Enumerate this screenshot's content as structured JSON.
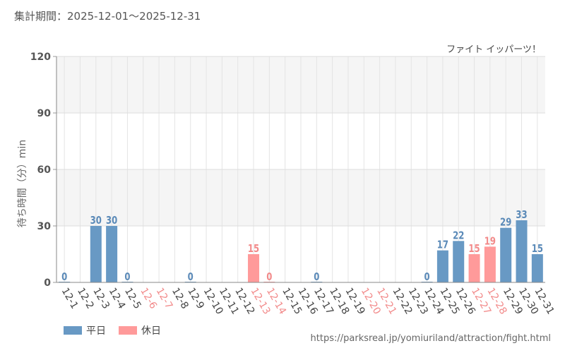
{
  "header": {
    "period": "集計期間：2025-12-01～2025-12-31"
  },
  "legend": {
    "weekday_label": "平日",
    "holiday_label": "休日"
  },
  "footer": {
    "source": "https://parksreal.jp/yomiuriland/attraction/fight.html"
  },
  "colors": {
    "weekday": "#6899c4",
    "holiday": "#ff9a9a",
    "weekday_text": "#5b8ab8",
    "holiday_text": "#f28a8a",
    "grid": "#e4e4e4",
    "band": "#f5f5f5",
    "axis_text": "#555555"
  },
  "chart_data": {
    "type": "bar",
    "title": "ファイト イッパーツ！",
    "ylabel": "待ち時間（分）min",
    "xlabel": "",
    "ylim": [
      0,
      120
    ],
    "yticks": [
      0,
      30,
      60,
      90,
      120
    ],
    "grid": true,
    "legend_position": "bottom-left",
    "categories": [
      "12-1",
      "12-2",
      "12-3",
      "12-4",
      "12-5",
      "12-6",
      "12-7",
      "12-8",
      "12-9",
      "12-10",
      "12-11",
      "12-12",
      "12-13",
      "12-14",
      "12-15",
      "12-16",
      "12-17",
      "12-18",
      "12-19",
      "12-20",
      "12-21",
      "12-22",
      "12-23",
      "12-24",
      "12-25",
      "12-26",
      "12-27",
      "12-28",
      "12-29",
      "12-30",
      "12-31"
    ],
    "values": [
      0,
      null,
      30,
      30,
      0,
      null,
      null,
      null,
      0,
      null,
      null,
      null,
      15,
      0,
      null,
      null,
      0,
      null,
      null,
      null,
      null,
      null,
      null,
      0,
      17,
      22,
      15,
      19,
      29,
      33,
      15
    ],
    "day_type": [
      "weekday",
      "weekday",
      "weekday",
      "weekday",
      "weekday",
      "holiday",
      "holiday",
      "weekday",
      "weekday",
      "weekday",
      "weekday",
      "weekday",
      "holiday",
      "holiday",
      "weekday",
      "weekday",
      "weekday",
      "weekday",
      "weekday",
      "holiday",
      "holiday",
      "weekday",
      "weekday",
      "weekday",
      "weekday",
      "weekday",
      "holiday",
      "holiday",
      "weekday",
      "weekday",
      "weekday"
    ],
    "series": [
      {
        "name": "平日",
        "type": "weekday"
      },
      {
        "name": "休日",
        "type": "holiday"
      }
    ]
  }
}
